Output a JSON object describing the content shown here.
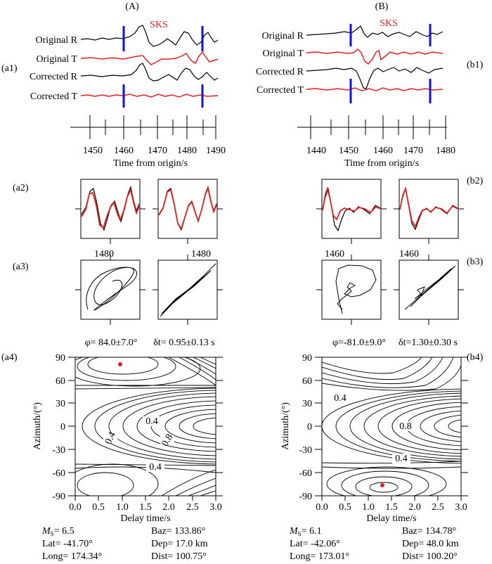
{
  "figure": {
    "panels": [
      {
        "id": "A",
        "heading": "(A)",
        "phase": "SKS",
        "label_a1": "(a1)",
        "label_a2": "(a2)",
        "label_a3": "(a3)",
        "label_a4": "(a4)",
        "trace_labels": [
          "Original R",
          "Original T",
          "Corrected R",
          "Corrected T"
        ],
        "time_axis": {
          "label": "Time from origin/s",
          "ticks": [
            "1450",
            "1460",
            "1470",
            "1480",
            "1490"
          ]
        },
        "pm_tick": "1480",
        "phi_text": "φ= 84.0±7.0°",
        "dt_text": "δt= 0.95±0.13 s",
        "contour_labels": [
          "0.4",
          "0.4",
          "0.8",
          "0.4"
        ],
        "info": {
          "ms": "M",
          "ms_sub": "S",
          "ms_val": "= 6.5",
          "baz": "Baz= 133.86°",
          "lat": "Lat= -41.70°",
          "dep": "Dep= 17.0 km",
          "long": "Long= 174.34°",
          "dist": "Dist= 100.75°"
        }
      },
      {
        "id": "B",
        "heading": "(B)",
        "phase": "SKS",
        "label_a1": "(b1)",
        "label_a2": "(b2)",
        "label_a3": "(b3)",
        "label_a4": "(b4)",
        "trace_labels": [
          "Original R",
          "Original T",
          "Corrected R",
          "Corrected T"
        ],
        "time_axis": {
          "label": "Time from origin/s",
          "ticks": [
            "1440",
            "1450",
            "1460",
            "1470",
            "1480"
          ]
        },
        "pm_tick": "1460",
        "phi_text": "φ=-81.0±9.0°",
        "dt_text": "δt=1.30±0.30 s",
        "contour_labels": [
          "0.4",
          "0.8",
          "0.4"
        ],
        "info": {
          "ms": "M",
          "ms_sub": "S",
          "ms_val": "= 6.1",
          "baz": "Baz= 134.78°",
          "lat": "Lat= -42.06°",
          "dep": "Dep= 48.0 km",
          "long": "Long= 173.01°",
          "dist": "Dist= 100.20°"
        }
      }
    ],
    "grid_axes": {
      "x_label": "Delay time/s",
      "y_label": "Azimuth/(°)",
      "x_ticks": [
        "0.0",
        "0.5",
        "1.0",
        "1.5",
        "2.0",
        "2.5",
        "3.0"
      ],
      "y_ticks": [
        "90",
        "60",
        "30",
        "0",
        "-30",
        "-60",
        "-90"
      ]
    },
    "colors": {
      "trace": "#000000",
      "transverse": "#e02020",
      "window": "#1010e0",
      "best_fit": "#e02020"
    }
  },
  "chart_data": [
    {
      "type": "heatmap",
      "panel": "a4",
      "x_range": [
        0.0,
        3.0
      ],
      "y_range": [
        -90,
        90
      ],
      "best_fit": {
        "delay_s": 0.95,
        "azimuth_deg": 84.0
      }
    },
    {
      "type": "heatmap",
      "panel": "b4",
      "x_range": [
        0.0,
        3.0
      ],
      "y_range": [
        -90,
        90
      ],
      "best_fit": {
        "delay_s": 1.3,
        "azimuth_deg": -81.0
      }
    }
  ]
}
